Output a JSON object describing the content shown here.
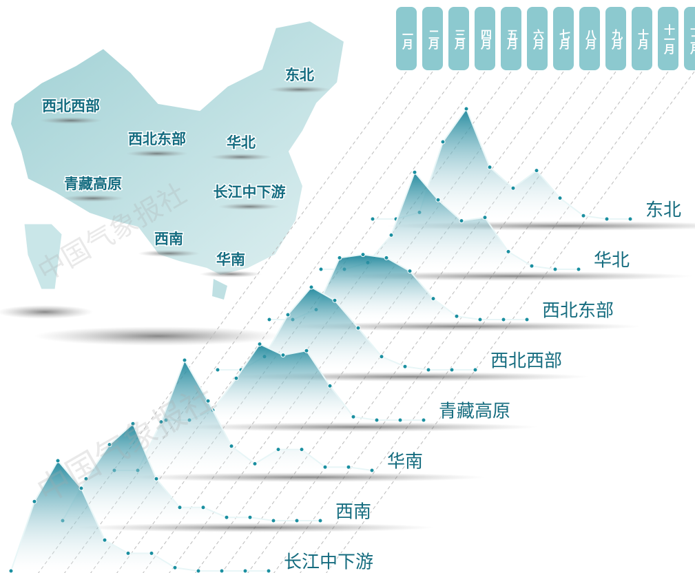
{
  "chart_data": {
    "type": "ridgeline",
    "categories": [
      "一月",
      "二月",
      "三月",
      "四月",
      "五月",
      "六月",
      "七月",
      "八月",
      "九月",
      "十月",
      "十一月",
      "十二月"
    ],
    "color": "#1a8fa0",
    "series": [
      {
        "name": "东北",
        "values": [
          0,
          0,
          6,
          70,
          100,
          47,
          28,
          44,
          19,
          3,
          0,
          0
        ]
      },
      {
        "name": "华北",
        "values": [
          0,
          0,
          6,
          31,
          88,
          63,
          44,
          47,
          16,
          3,
          0,
          0
        ]
      },
      {
        "name": "西北东部",
        "values": [
          0,
          0,
          9,
          56,
          59,
          56,
          44,
          19,
          3,
          0,
          0,
          0
        ]
      },
      {
        "name": "西北西部",
        "values": [
          0,
          0,
          12,
          50,
          75,
          63,
          38,
          12,
          3,
          0,
          0,
          0
        ]
      },
      {
        "name": "青藏高原",
        "values": [
          0,
          0,
          9,
          38,
          69,
          59,
          63,
          31,
          3,
          0,
          0,
          0
        ]
      },
      {
        "name": "华南",
        "values": [
          0,
          0,
          44,
          100,
          63,
          22,
          6,
          19,
          19,
          3,
          3,
          0
        ]
      },
      {
        "name": "西南",
        "values": [
          0,
          38,
          69,
          88,
          38,
          12,
          12,
          3,
          3,
          0,
          0,
          0
        ]
      },
      {
        "name": "长江中下游",
        "values": [
          0,
          63,
          100,
          75,
          28,
          16,
          16,
          3,
          0,
          0,
          0,
          0
        ]
      }
    ]
  },
  "map": {
    "regions": [
      "东北",
      "西北西部",
      "西北东部",
      "华北",
      "青藏高原",
      "长江中下游",
      "西南",
      "华南"
    ]
  },
  "watermark": "中国气象报社"
}
